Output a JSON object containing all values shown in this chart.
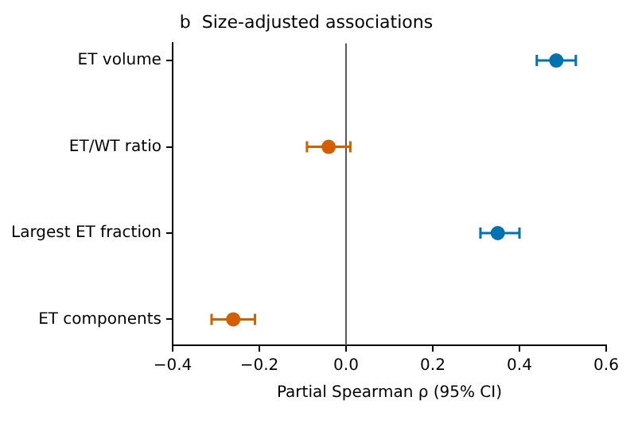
{
  "chart_data": {
    "type": "scatter",
    "orientation": "horizontal",
    "title": "b  Size-adjusted associations",
    "xlabel": "Partial Spearman ρ (95% CI)",
    "categories": [
      "ET volume",
      "ET/WT ratio",
      "Largest ET fraction",
      "ET components"
    ],
    "values": [
      0.485,
      -0.04,
      0.35,
      -0.26
    ],
    "errors": [
      [
        0.44,
        0.53
      ],
      [
        -0.09,
        0.01
      ],
      [
        0.31,
        0.4
      ],
      [
        -0.31,
        -0.21
      ]
    ],
    "colors": [
      "#0072b2",
      "#d55e00",
      "#0072b2",
      "#d55e00"
    ],
    "xlim": [
      -0.4,
      0.6
    ],
    "xticks": [
      -0.4,
      -0.2,
      {
        "value": 0,
        "label": "0.0"
      },
      0.2,
      0.4,
      0.6
    ],
    "ref_lines": [
      {
        "axis": "x",
        "value": 0,
        "color": "#555555"
      }
    ],
    "marker": "circle",
    "grid": false,
    "legend": false
  }
}
